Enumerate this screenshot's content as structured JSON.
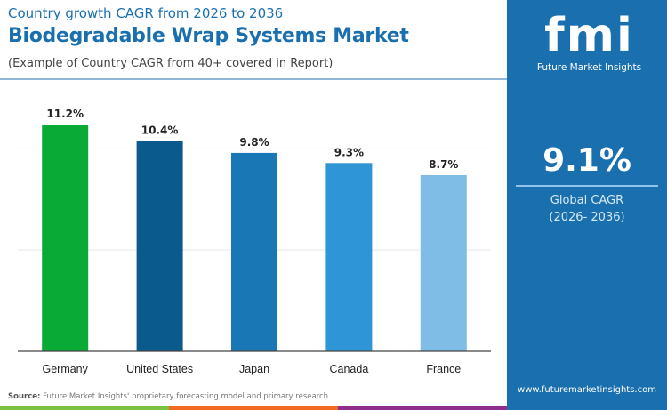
{
  "header": {
    "subtitle": "Country growth CAGR from 2026 to 2036",
    "title": "Biodegradable Wrap Systems Market",
    "note": "(Example of Country CAGR from 40+ covered in Report)"
  },
  "chart_data": {
    "type": "bar",
    "categories": [
      "Germany",
      "United States",
      "Japan",
      "Canada",
      "France"
    ],
    "values": [
      11.2,
      10.4,
      9.8,
      9.3,
      8.7
    ],
    "data_labels": [
      "11.2%",
      "10.4%",
      "9.8%",
      "9.3%",
      "8.7%"
    ],
    "colors": [
      "#0aaa36",
      "#0b5a8e",
      "#1a77b5",
      "#2e96d6",
      "#7fbde6"
    ],
    "ylim": [
      0,
      12.3
    ],
    "grid": true,
    "title": "",
    "xlabel": "",
    "ylabel": ""
  },
  "source": {
    "label": "Source:",
    "text": " Future Market Insights' proprietary forecasting model and primary research"
  },
  "stripe_colors": [
    "#7cc242",
    "#f26a21",
    "#8e2d8e"
  ],
  "sidebar": {
    "logo_text": "fmi",
    "brand": "Future Market Insights",
    "cagr_value": "9.1%",
    "cagr_label": "Global CAGR",
    "cagr_period": "(2026- 2036)",
    "url": "www.futuremarketinsights.com",
    "bg": "#1a6fae"
  }
}
